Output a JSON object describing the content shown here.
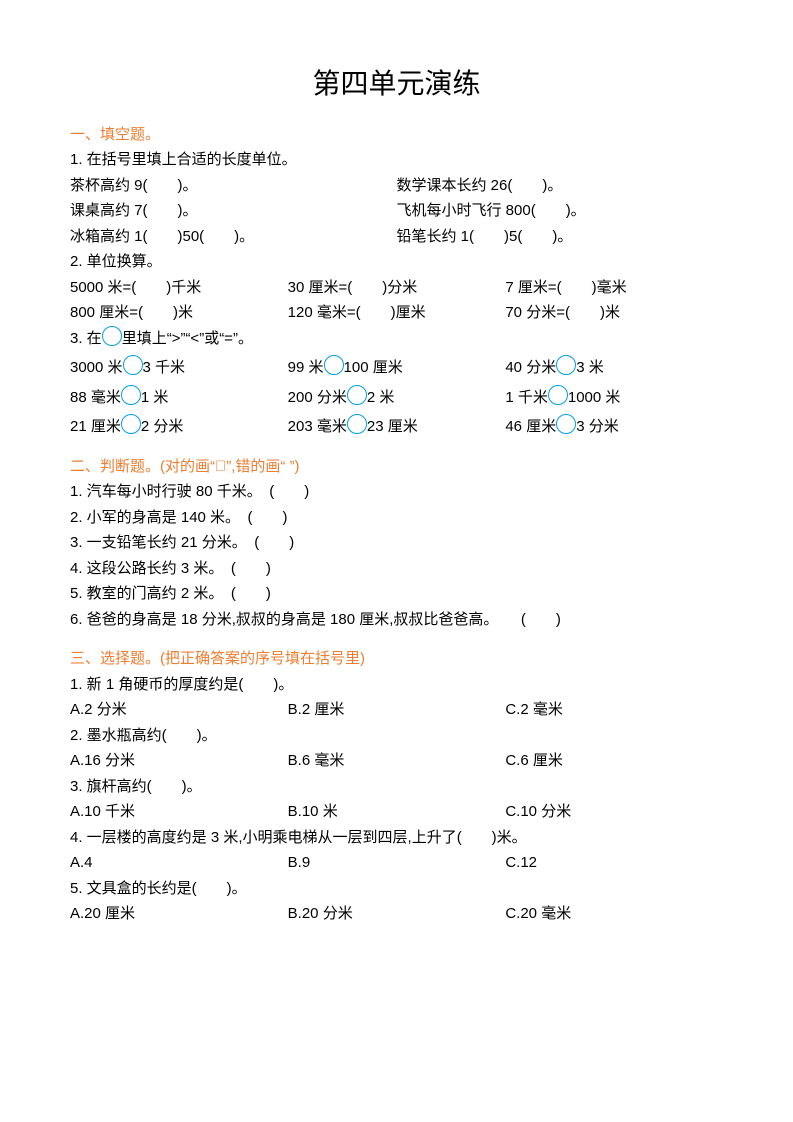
{
  "title": "第四单元演练",
  "s1": {
    "heading": "一、填空题。",
    "q1": {
      "stem": "1. 在括号里填上合适的长度单位。",
      "a1": "茶杯高约 9(　　)。",
      "a2": "数学课本长约 26(　　)。",
      "b1": "课桌高约 7(　　)。",
      "b2": "飞机每小时飞行 800(　　)。",
      "c1": "冰箱高约 1(　　)50(　　)。",
      "c2": "铅笔长约 1(　　)5(　　)。"
    },
    "q2": {
      "stem": "2. 单位换算。",
      "a1": "5000 米=(　　)千米",
      "a2": "30 厘米=(　　)分米",
      "a3": "7 厘米=(　　)毫米",
      "b1": "800 厘米=(　　)米",
      "b2": "120 毫米=(　　)厘米",
      "b3": "70 分米=(　　)米"
    },
    "q3": {
      "prefix": "3. 在",
      "suffix": "里填上“>”“<”或“=”。",
      "r1": [
        "3000 米",
        "3 千米",
        "99 米",
        "100 厘米",
        "40 分米",
        "3 米"
      ],
      "r2": [
        "88 毫米",
        "1 米",
        "200 分米",
        "2 米",
        "1 千米",
        "1000 米"
      ],
      "r3": [
        "21 厘米",
        "2 分米",
        "203 毫米",
        "23 厘米",
        "46 厘米",
        "3 分米"
      ]
    }
  },
  "s2": {
    "heading": "二、判断题。(对的画“􀀻”,错的画“ ”)",
    "items": [
      "1. 汽车每小时行驶 80 千米。　(　　)",
      "2. 小军的身高是 140 米。　(　　)",
      "3. 一支铅笔长约 21 分米。　(　　)",
      "4. 这段公路长约 3 米。　(　　)",
      "5. 教室的门高约 2 米。　(　　)",
      "6. 爸爸的身高是 18 分米,叔叔的身高是 180 厘米,叔叔比爸爸高。　　(　　)"
    ]
  },
  "s3": {
    "heading": "三、选择题。(把正确答案的序号填在括号里)",
    "q1": {
      "stem": "1. 新 1 角硬币的厚度约是(　　)。",
      "a": "A.2 分米",
      "b": "B.2 厘米",
      "c": "C.2 毫米"
    },
    "q2": {
      "stem": "2. 墨水瓶高约(　　)。",
      "a": "A.16 分米",
      "b": "B.6 毫米",
      "c": "C.6 厘米"
    },
    "q3": {
      "stem": "3. 旗杆高约(　　)。",
      "a": "A.10 千米",
      "b": "B.10 米",
      "c": "C.10 分米"
    },
    "q4": {
      "stem": "4. 一层楼的高度约是 3 米,小明乘电梯从一层到四层,上升了(　　)米。",
      "a": "A.4",
      "b": "B.9",
      "c": "C.12"
    },
    "q5": {
      "stem": "5. 文具盒的长约是(　　)。",
      "a": "A.20 厘米",
      "b": "B.20 分米",
      "c": "C.20 毫米"
    }
  }
}
